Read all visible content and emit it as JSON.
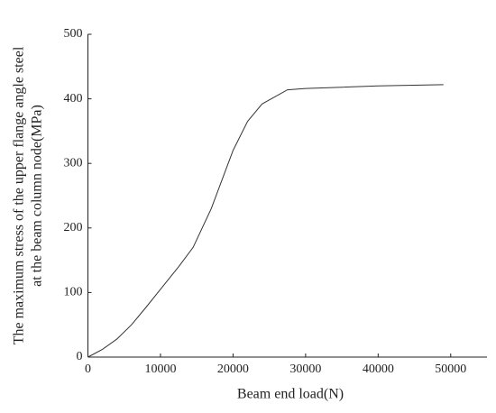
{
  "chart_data": {
    "type": "line",
    "xlabel": "Beam end load(N)",
    "ylabel": [
      "The maximum stress of the upper flange angle steel",
      "at the beam column node(MPa)"
    ],
    "x": [
      0,
      2000,
      4000,
      6000,
      8000,
      10000,
      12500,
      14500,
      17000,
      20000,
      22000,
      24000,
      27500,
      30000,
      35000,
      40000,
      49000
    ],
    "series": [
      {
        "color": "#333333",
        "values": [
          0,
          12,
          28,
          50,
          77,
          105,
          140,
          170,
          230,
          320,
          365,
          392,
          414,
          416,
          418,
          420,
          422
        ]
      }
    ],
    "xlim": [
      0,
      55000
    ],
    "xticks": [
      0,
      10000,
      20000,
      30000,
      40000,
      50000
    ],
    "ylim": [
      0,
      500
    ],
    "yticks": [
      0,
      100,
      200,
      300,
      400,
      500
    ]
  }
}
